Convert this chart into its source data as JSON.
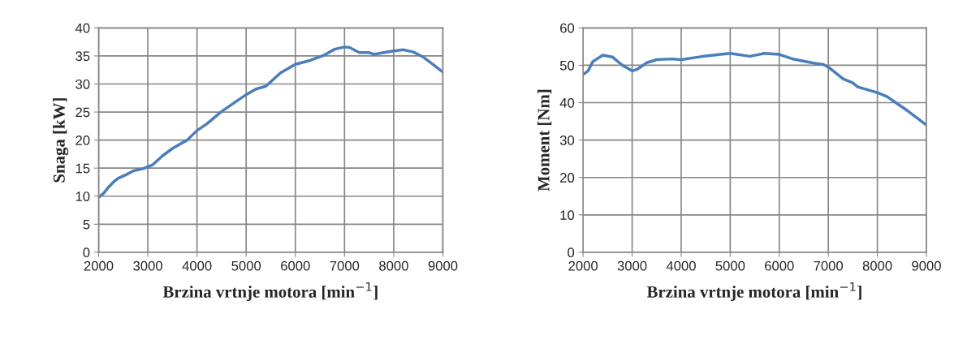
{
  "chart_data": [
    {
      "type": "line",
      "xlabel": "Brzina vrtnje motora [min$^{−1}$]",
      "ylabel": "Snaga [kW]",
      "xlim": [
        2000,
        9000
      ],
      "xticks": [
        2000,
        3000,
        4000,
        5000,
        6000,
        7000,
        8000,
        9000
      ],
      "ylim": [
        0,
        40
      ],
      "yticks": [
        0,
        5,
        10,
        15,
        20,
        25,
        30,
        35,
        40
      ],
      "grid": true,
      "legend": false,
      "series": [
        {
          "color": "#4a7ebb",
          "x": [
            2000,
            2100,
            2200,
            2300,
            2400,
            2600,
            2700,
            2900,
            3100,
            3300,
            3500,
            3800,
            4000,
            4200,
            4500,
            4800,
            5000,
            5200,
            5400,
            5700,
            6000,
            6300,
            6600,
            6800,
            7000,
            7100,
            7300,
            7500,
            7600,
            7800,
            8000,
            8200,
            8400,
            8600,
            8800,
            8900,
            9000
          ],
          "values": [
            9.8,
            10.5,
            11.6,
            12.5,
            13.2,
            14.0,
            14.5,
            14.9,
            15.6,
            17.2,
            18.5,
            20.0,
            21.7,
            22.9,
            25.1,
            26.9,
            28.1,
            29.1,
            29.6,
            32.0,
            33.5,
            34.2,
            35.2,
            36.2,
            36.6,
            36.5,
            35.6,
            35.6,
            35.3,
            35.6,
            35.9,
            36.1,
            35.7,
            34.8,
            33.5,
            32.8,
            32.1
          ]
        }
      ]
    },
    {
      "type": "line",
      "xlabel": "Brzina vrtnje motora [min$^{−1}$]",
      "ylabel": "Moment [Nm]",
      "xlim": [
        2000,
        9000
      ],
      "xticks": [
        2000,
        3000,
        4000,
        5000,
        6000,
        7000,
        8000,
        9000
      ],
      "ylim": [
        0,
        60
      ],
      "yticks": [
        0,
        10,
        20,
        30,
        40,
        50,
        60
      ],
      "grid": true,
      "legend": false,
      "series": [
        {
          "color": "#4a7ebb",
          "x": [
            2000,
            2100,
            2200,
            2400,
            2600,
            2800,
            3000,
            3100,
            3300,
            3500,
            3800,
            4000,
            4400,
            4800,
            5000,
            5400,
            5700,
            6000,
            6300,
            6700,
            6900,
            7000,
            7100,
            7300,
            7500,
            7600,
            8000,
            8200,
            8400,
            8600,
            8800,
            9000
          ],
          "values": [
            47.5,
            48.5,
            51.0,
            52.7,
            52.2,
            50.0,
            48.5,
            48.9,
            50.7,
            51.5,
            51.7,
            51.5,
            52.3,
            52.9,
            53.2,
            52.4,
            53.2,
            52.9,
            51.6,
            50.6,
            50.2,
            49.5,
            48.5,
            46.4,
            45.3,
            44.2,
            42.7,
            41.6,
            39.8,
            38.0,
            36.0,
            34.0
          ]
        }
      ]
    }
  ]
}
